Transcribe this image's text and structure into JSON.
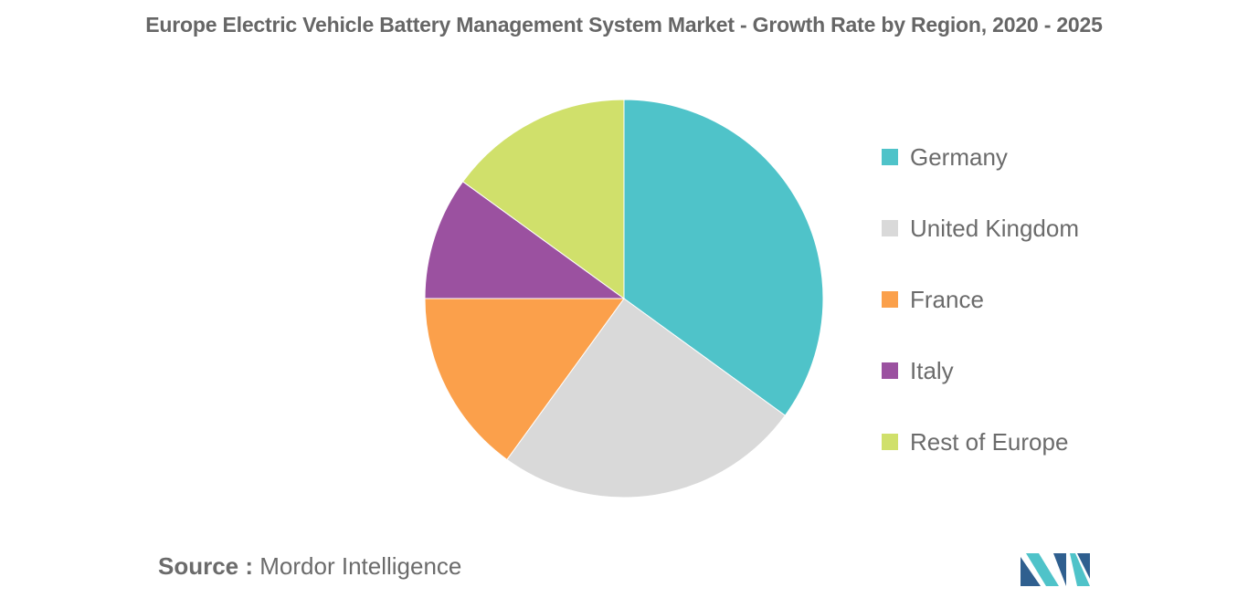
{
  "chart_data": {
    "type": "pie",
    "title": "Europe Electric Vehicle Battery Management System Market - Growth Rate by Region, 2020 - 2025",
    "categories": [
      "Germany",
      "United Kingdom",
      "France",
      "Italy",
      "Rest of Europe"
    ],
    "values": [
      35,
      25,
      15,
      10,
      15
    ],
    "colors": [
      "#4fc3c9",
      "#d9d9d9",
      "#fba04b",
      "#9b51a0",
      "#d0e06b"
    ],
    "legend_position": "right"
  },
  "source": {
    "label": "Source :",
    "text": "Mordor Intelligence"
  },
  "logo": {
    "icon": "mordor-intelligence-logo",
    "colors": [
      "#2f5f8f",
      "#4fc3c9"
    ]
  }
}
